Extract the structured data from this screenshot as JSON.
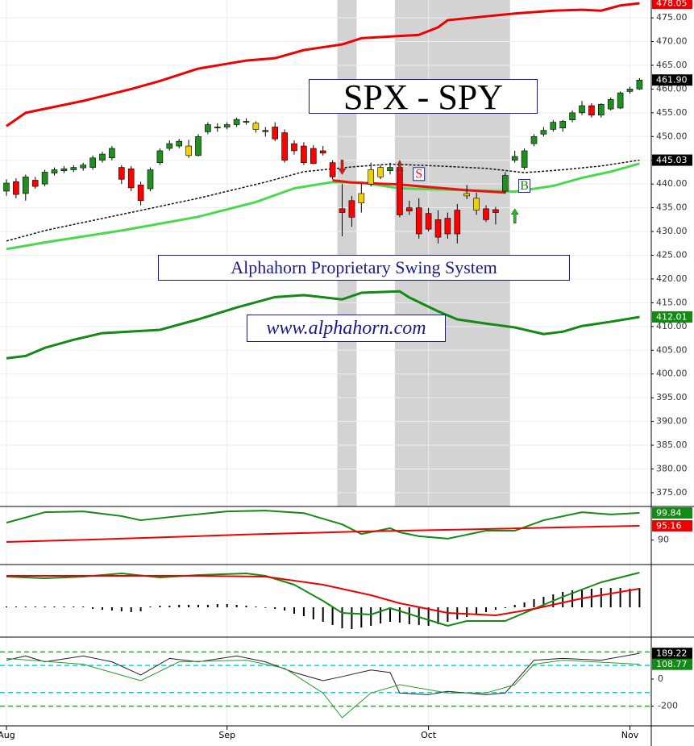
{
  "chart_data": {
    "type": "candlestick",
    "title": "SPX - SPY",
    "annotations": [
      "Alphahorn Proprietary Swing System",
      "www.alphahorn.com"
    ],
    "categories": [
      "Aug",
      null,
      null,
      null,
      null,
      null,
      null,
      null,
      null,
      null,
      null,
      null,
      null,
      null,
      null,
      null,
      null,
      null,
      null,
      null,
      null,
      null,
      null,
      "Sep",
      null,
      null,
      null,
      null,
      null,
      null,
      null,
      null,
      null,
      null,
      null,
      null,
      null,
      null,
      null,
      null,
      null,
      null,
      null,
      null,
      "Oct",
      null,
      null,
      null,
      null,
      null,
      null,
      null,
      null,
      null,
      null,
      null,
      null,
      null,
      null,
      null,
      null,
      null,
      null,
      null,
      null,
      "Nov",
      null
    ],
    "open": [
      438.5,
      440.5,
      438.0,
      440.8,
      440.0,
      442.3,
      442.8,
      443.0,
      443.4,
      443.5,
      445.0,
      445.5,
      443.5,
      443.2,
      439.8,
      439.0,
      444.5,
      447.5,
      448.0,
      448.0,
      446.0,
      451.0,
      451.8,
      452.0,
      452.5,
      453.2,
      452.8,
      451.0,
      452.0,
      450.8,
      448.5,
      448.0,
      447.5,
      447.0,
      444.5,
      434.8,
      436.5,
      436.0,
      440.0,
      441.5,
      442.8,
      443.5,
      435.0,
      435.0,
      433.8,
      432.5,
      432.8,
      434.5,
      438.0,
      437.0,
      434.8,
      434.6,
      438.5,
      445.0,
      443.5,
      448.5,
      450.5,
      451.5,
      451.8,
      453.5,
      455.0,
      456.5,
      454.5,
      455.8,
      456.0,
      459.5,
      460.0
    ],
    "high": [
      441.0,
      441.2,
      442.0,
      441.5,
      443.0,
      443.5,
      443.8,
      444.0,
      444.5,
      446.0,
      446.8,
      448.0,
      444.0,
      443.8,
      440.5,
      443.5,
      447.5,
      449.2,
      449.5,
      449.3,
      450.5,
      453.0,
      452.8,
      453.0,
      454.0,
      453.8,
      453.2,
      452.0,
      453.0,
      451.5,
      449.2,
      448.8,
      448.2,
      448.0,
      445.0,
      440.0,
      437.5,
      440.0,
      444.5,
      444.0,
      444.5,
      445.0,
      436.5,
      437.0,
      435.0,
      434.5,
      434.0,
      435.8,
      439.8,
      438.2,
      435.5,
      435.2,
      442.5,
      447.0,
      447.5,
      450.5,
      452.0,
      453.5,
      453.5,
      455.5,
      457.5,
      457.0,
      457.0,
      458.2,
      459.5,
      460.5,
      462.3
    ],
    "low": [
      437.5,
      437.0,
      436.5,
      439.0,
      439.5,
      441.8,
      442.3,
      442.5,
      442.8,
      443.0,
      444.5,
      445.0,
      440.0,
      438.5,
      435.5,
      438.5,
      444.0,
      447.0,
      447.5,
      445.5,
      445.8,
      450.5,
      451.0,
      451.5,
      452.0,
      452.5,
      450.8,
      450.0,
      449.0,
      444.5,
      446.2,
      444.0,
      444.2,
      446.0,
      441.0,
      429.0,
      431.0,
      434.0,
      439.5,
      441.0,
      442.0,
      433.0,
      433.5,
      428.5,
      430.0,
      427.5,
      428.5,
      427.5,
      436.8,
      433.5,
      432.0,
      431.5,
      438.0,
      444.5,
      443.0,
      448.0,
      450.0,
      451.0,
      451.0,
      453.0,
      454.5,
      454.0,
      454.0,
      455.5,
      455.8,
      459.0,
      459.8
    ],
    "close": [
      440.2,
      437.8,
      441.5,
      439.5,
      442.5,
      443.0,
      443.2,
      443.5,
      444.0,
      445.5,
      446.3,
      447.5,
      441.0,
      439.2,
      436.5,
      443.0,
      447.0,
      448.5,
      449.0,
      446.0,
      450.0,
      452.5,
      452.0,
      452.5,
      453.6,
      453.0,
      451.5,
      451.3,
      449.5,
      445.0,
      447.0,
      444.5,
      444.3,
      446.5,
      441.5,
      434.0,
      433.0,
      438.0,
      443.0,
      443.5,
      443.5,
      433.5,
      434.3,
      429.5,
      430.5,
      428.8,
      429.5,
      429.5,
      437.5,
      434.5,
      432.5,
      434.0,
      441.8,
      445.8,
      447.0,
      450.0,
      451.3,
      453.0,
      453.2,
      455.0,
      456.5,
      454.5,
      456.8,
      457.8,
      459.2,
      460.0,
      461.9
    ],
    "candle_colors": [
      "#1f8f1f",
      "#ff0000",
      "#1f8f1f",
      "#ff0000",
      "#1f8f1f",
      "#1f8f1f",
      "#1f8f1f",
      "#1f8f1f",
      "#1f8f1f",
      "#1f8f1f",
      "#1f8f1f",
      "#1f8f1f",
      "#ff0000",
      "#ff0000",
      "#ff0000",
      "#1f8f1f",
      "#1f8f1f",
      "#1f8f1f",
      "#1f8f1f",
      "#f2d100",
      "#1f8f1f",
      "#1f8f1f",
      "#1f8f1f",
      "#1f8f1f",
      "#1f8f1f",
      "#1f8f1f",
      "#f2d100",
      "#1f8f1f",
      "#ff0000",
      "#ff0000",
      "#ff0000",
      "#ff0000",
      "#ff0000",
      "#ff0000",
      "#ff0000",
      "#ff0000",
      "#ff0000",
      "#f2d100",
      "#f2d100",
      "#f2d100",
      "#1f8f1f",
      "#ff0000",
      "#ff0000",
      "#ff0000",
      "#ff0000",
      "#ff0000",
      "#ff0000",
      "#ff0000",
      "#f2d100",
      "#f2d100",
      "#ff0000",
      "#ff0000",
      "#1f8f1f",
      "#1f8f1f",
      "#1f8f1f",
      "#1f8f1f",
      "#1f8f1f",
      "#1f8f1f",
      "#1f8f1f",
      "#1f8f1f",
      "#1f8f1f",
      "#ff0000",
      "#1f8f1f",
      "#1f8f1f",
      "#1f8f1f",
      "#1f8f1f",
      "#1f8f1f"
    ],
    "ylim": [
      372.1,
      478.75
    ],
    "yticks": [
      {
        "value": 375,
        "label": "375.00"
      },
      {
        "value": 380,
        "label": "380.00"
      },
      {
        "value": 385,
        "label": "385.00"
      },
      {
        "value": 390,
        "label": "390.00"
      },
      {
        "value": 395,
        "label": "395.00"
      },
      {
        "value": 400,
        "label": "400.00"
      },
      {
        "value": 405,
        "label": "405.00"
      },
      {
        "value": 410,
        "label": "410.00"
      },
      {
        "value": 415,
        "label": "415.00"
      },
      {
        "value": 420,
        "label": "420.00"
      },
      {
        "value": 425,
        "label": "425.00"
      },
      {
        "value": 430,
        "label": "430.00"
      },
      {
        "value": 435,
        "label": "435.00"
      },
      {
        "value": 440,
        "label": "440.00"
      },
      {
        "value": 445,
        "label": "445.00"
      },
      {
        "value": 450,
        "label": "450.00"
      },
      {
        "value": 455,
        "label": "455.00"
      },
      {
        "value": 460,
        "label": "460.00"
      },
      {
        "value": 465,
        "label": "465.00"
      },
      {
        "value": 470,
        "label": "470.00"
      },
      {
        "value": 475,
        "label": "475.00"
      }
    ],
    "grid": true,
    "shaded_ranges": [
      [
        35,
        36
      ],
      [
        41,
        52
      ]
    ],
    "lines": [
      {
        "color": "#ee0000",
        "width": 3,
        "x": [
          0,
          2,
          8,
          13,
          16,
          20,
          25,
          28,
          31,
          35,
          37,
          43,
          45,
          46,
          50,
          53,
          57,
          60,
          62,
          64,
          66
        ],
        "values": [
          452.2,
          455.0,
          457.5,
          460.0,
          461.7,
          464.3,
          466.0,
          466.5,
          468.2,
          469.4,
          470.7,
          471.4,
          473.0,
          474.5,
          475.3,
          475.9,
          476.5,
          476.7,
          476.5,
          477.6,
          478.05
        ]
      },
      {
        "color": "#138a13",
        "width": 3,
        "x": [
          0,
          2,
          4,
          7,
          10,
          16,
          20,
          24,
          28,
          31,
          35,
          37,
          41,
          42,
          45,
          47,
          50,
          53,
          56,
          58,
          60,
          63,
          66
        ],
        "values": [
          403.3,
          403.8,
          405.5,
          407.2,
          408.6,
          409.3,
          411.5,
          414.0,
          416.2,
          416.6,
          415.7,
          417.1,
          417.4,
          416.1,
          413.2,
          411.5,
          410.6,
          409.8,
          408.4,
          408.9,
          410.1,
          411.0,
          412.01
        ]
      },
      {
        "color": "#4cd84c",
        "width": 3,
        "x": [
          0,
          4,
          12,
          20,
          26,
          30,
          34,
          37,
          41,
          53,
          57,
          60,
          63,
          66
        ],
        "values": [
          426.3,
          427.7,
          430.2,
          433.1,
          436.2,
          439.1,
          440.4,
          440.3,
          439.1,
          438.4,
          439.6,
          441.3,
          442.6,
          444.3
        ]
      },
      {
        "color": "#111111",
        "width": 1.5,
        "dashed": true,
        "x": [
          0,
          4,
          12,
          20,
          27,
          31,
          36,
          40,
          45,
          50,
          54,
          58,
          62,
          66
        ],
        "values": [
          428.0,
          430.2,
          433.6,
          437.0,
          440.4,
          442.6,
          443.6,
          444.2,
          443.8,
          443.3,
          442.4,
          443.0,
          443.8,
          445.03
        ]
      },
      {
        "color": "#ee1111",
        "width": 3,
        "x": [
          34,
          36,
          41,
          45,
          48,
          52
        ],
        "values": [
          440.8,
          440.3,
          439.9,
          439.2,
          438.7,
          438.2
        ]
      }
    ],
    "signals": [
      {
        "x": 35,
        "value": 442.0,
        "direction": "down",
        "color": "#ee1111"
      },
      {
        "x": 41,
        "value": 441.6,
        "direction": "down",
        "color": "#ee1111"
      },
      {
        "x": 53,
        "value": 434.8,
        "direction": "up",
        "color": "#22bb22"
      }
    ],
    "signal_labels": [
      {
        "text": "S",
        "x": 43,
        "value": 442.1,
        "color": "#ee1111"
      },
      {
        "text": "B",
        "x": 54,
        "value": 439.6,
        "color": "#138a13"
      }
    ],
    "price_flags": [
      {
        "value": 478.05,
        "color": "#ee0000"
      },
      {
        "value": 461.9,
        "label": "461.90",
        "color": "#000000"
      },
      {
        "value": 445.03,
        "color": "#000000"
      },
      {
        "value": 412.01,
        "color": "#138a13"
      }
    ],
    "panels": [
      {
        "ylim": [
          81.1,
          102.2
        ],
        "yticks": [
          90
        ],
        "lines": [
          {
            "color": "#138a13",
            "width": 2,
            "x": [
              0,
              4,
              8,
              12,
              14,
              18,
              23,
              27,
              31,
              35,
              37,
              40,
              41,
              43,
              46,
              50,
              53,
              56,
              60,
              63,
              66
            ],
            "values": [
              96.3,
              100.1,
              100.4,
              98.7,
              97.2,
              98.7,
              100.4,
              100.7,
              99.8,
              95.7,
              92.2,
              94.3,
              92.8,
              91.4,
              90.5,
              93.4,
              93.4,
              97.2,
              100.1,
              99.3,
              99.84
            ]
          },
          {
            "color": "#ee0000",
            "width": 2,
            "x": [
              0,
              12,
              25,
              37,
              50,
              62,
              66
            ],
            "values": [
              89.3,
              90.5,
              92.0,
              93.1,
              94.0,
              94.9,
              95.16
            ]
          }
        ],
        "flags": [
          {
            "value": 99.84,
            "color": "#138a13"
          },
          {
            "value": 95.16,
            "color": "#ee0000"
          }
        ]
      },
      {
        "ylim": [
          -3.7,
          5.3
        ],
        "histogram": [
          0.1,
          0.1,
          0.1,
          0.1,
          0.1,
          0.1,
          0.1,
          0.1,
          0.1,
          -0.2,
          -0.3,
          -0.4,
          -0.5,
          -0.6,
          -0.5,
          0.1,
          0.2,
          0.2,
          0.3,
          0.3,
          0.3,
          0.3,
          0.4,
          0.4,
          0.3,
          0.2,
          0.1,
          0,
          -0.2,
          -0.4,
          -0.8,
          -1.1,
          -1.5,
          -1.8,
          -2.2,
          -2.6,
          -2.7,
          -2.5,
          -2.3,
          -2.0,
          -1.8,
          -1.9,
          -2.1,
          -2.2,
          -2.3,
          -2.1,
          -1.8,
          -1.5,
          -1.2,
          -0.9,
          -0.6,
          -0.3,
          -0.1,
          0.3,
          0.6,
          1.0,
          1.3,
          1.6,
          1.9,
          2.1,
          2.2,
          2.3,
          2.4,
          2.4,
          2.4,
          2.3,
          2.4
        ],
        "lines": [
          {
            "color": "#138a13",
            "width": 2,
            "x": [
              0,
              4,
              8,
              12,
              16,
              20,
              25,
              27,
              30,
              33,
              35,
              38,
              40,
              43,
              46,
              48,
              52,
              55,
              58,
              62,
              66
            ],
            "values": [
              3.8,
              3.6,
              3.8,
              4.2,
              3.7,
              4.0,
              4.2,
              3.9,
              2.8,
              0.8,
              -0.7,
              -0.9,
              -0.1,
              -1.2,
              -2.3,
              -1.7,
              -1.7,
              -0.2,
              1.3,
              3.1,
              4.3
            ]
          },
          {
            "color": "#ee0000",
            "width": 2,
            "x": [
              0,
              12,
              20,
              27,
              33,
              38,
              41,
              46,
              51,
              55,
              60,
              66
            ],
            "values": [
              3.9,
              3.9,
              3.9,
              3.8,
              2.8,
              1.5,
              0.5,
              -0.7,
              -1.0,
              -0.2,
              1.1,
              2.3
            ]
          }
        ]
      },
      {
        "ylim": [
          -345,
          309
        ],
        "yticks": [
          0,
          -200
        ],
        "levels": [
          {
            "value": 200,
            "color": "#22b022"
          },
          {
            "value": 100,
            "color": "#00d8e8"
          },
          {
            "value": -100,
            "color": "#00d8e8"
          },
          {
            "value": -200,
            "color": "#22b022"
          }
        ],
        "lines": [
          {
            "color": "#222222",
            "width": 1,
            "x": [
              0,
              2,
              4,
              8,
              11,
              14,
              17,
              20,
              24,
              27,
              30,
              33,
              35,
              38,
              40,
              41,
              44,
              46,
              50,
              52,
              55,
              58,
              62,
              66
            ],
            "values": [
              139,
              170,
              127,
              170,
              127,
              30,
              152,
              127,
              170,
              127,
              48,
              -12,
              18,
              67,
              48,
              -103,
              -115,
              -91,
              -115,
              -103,
              139,
              152,
              139,
              189.22
            ]
          },
          {
            "color": "#2a9d2a",
            "width": 1,
            "x": [
              0,
              8,
              14,
              18,
              25,
              29,
              33,
              35,
              38,
              41,
              46,
              50,
              53,
              55,
              58,
              66
            ],
            "values": [
              152,
              109,
              -12,
              127,
              139,
              79,
              -103,
              -285,
              -103,
              -42,
              -103,
              -103,
              -42,
              109,
              139,
              108.77
            ]
          }
        ],
        "flags": [
          {
            "value": 189.22,
            "color": "#000000"
          },
          {
            "value": 108.77,
            "color": "#138a13"
          }
        ]
      }
    ]
  }
}
